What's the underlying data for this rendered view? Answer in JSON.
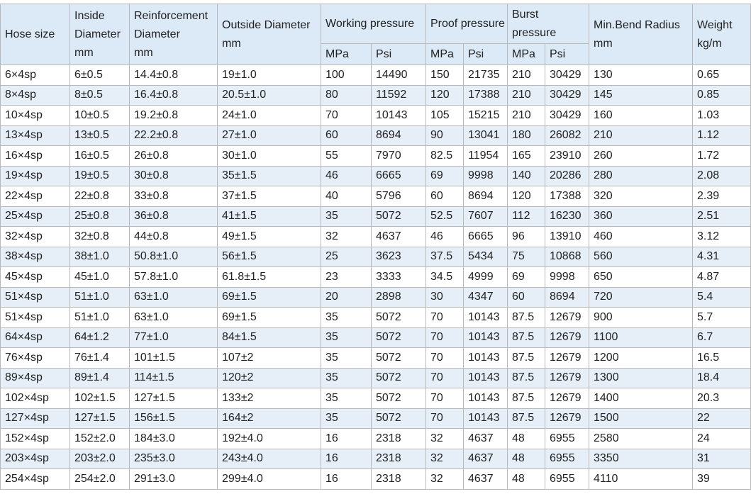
{
  "table": {
    "header": {
      "row1": [
        "Hose size",
        "Inside\nDiameter\nmm",
        "Reinforcement\nDiameter\nmm",
        "Outside Diameter\nmm",
        "Working pressure",
        "Proof pressure",
        "Burst\npressure",
        "Min.Bend Radius\nmm",
        "Weight\nkg/m"
      ],
      "row2": [
        "MPa",
        "Psi",
        "MPa",
        "Psi",
        "MPa",
        "Psi"
      ]
    },
    "rows": [
      [
        "6×4sp",
        "6±0.5",
        "14.4±0.8",
        "19±1.0",
        "100",
        "14490",
        "150",
        "21735",
        "210",
        "30429",
        "130",
        "0.65"
      ],
      [
        "8×4sp",
        "8±0.5",
        "16.4±0.8",
        "20.5±1.0",
        "80",
        "11592",
        "120",
        "17388",
        "210",
        "30429",
        "145",
        "0.85"
      ],
      [
        "10×4sp",
        "10±0.5",
        "19.2±0.8",
        "24±1.0",
        "70",
        "10143",
        "105",
        "15215",
        "210",
        "30429",
        "160",
        "1.03"
      ],
      [
        "13×4sp",
        "13±0.5",
        "22.2±0.8",
        "27±1.0",
        "60",
        "8694",
        "90",
        "13041",
        "180",
        "26082",
        "210",
        "1.12"
      ],
      [
        "16×4sp",
        "16±0.5",
        "26±0.8",
        "30±1.0",
        "55",
        "7970",
        "82.5",
        "11954",
        "165",
        "23910",
        "260",
        "1.72"
      ],
      [
        "19×4sp",
        "19±0.5",
        "30±0.8",
        "35±1.5",
        "46",
        "6665",
        "69",
        "9998",
        "140",
        "20286",
        "280",
        "2.08"
      ],
      [
        "22×4sp",
        "22±0.8",
        "33±0.8",
        "37±1.5",
        "40",
        "5796",
        "60",
        "8694",
        "120",
        "17388",
        "320",
        "2.39"
      ],
      [
        "25×4sp",
        "25±0.8",
        "36±0.8",
        "41±1.5",
        "35",
        "5072",
        "52.5",
        "7607",
        "112",
        "16230",
        "360",
        "2.51"
      ],
      [
        "32×4sp",
        "32±0.8",
        "44±0.8",
        "49±1.5",
        "32",
        "4637",
        "46",
        "6665",
        "96",
        "13910",
        "460",
        "3.12"
      ],
      [
        "38×4sp",
        "38±1.0",
        "50.8±1.0",
        "56±1.5",
        "25",
        "3623",
        "37.5",
        "5434",
        "75",
        "10868",
        "560",
        "4.31"
      ],
      [
        "45×4sp",
        "45±1.0",
        "57.8±1.0",
        "61.8±1.5",
        "23",
        "3333",
        "34.5",
        "4999",
        "69",
        "9998",
        "650",
        "4.87"
      ],
      [
        "51×4sp",
        "51±1.0",
        "63±1.0",
        "69±1.5",
        "20",
        "2898",
        "30",
        "4347",
        "60",
        "8694",
        "720",
        "5.4"
      ],
      [
        "51×4sp",
        "51±1.0",
        "63±1.0",
        "69±1.5",
        "35",
        "5072",
        "70",
        "10143",
        "87.5",
        "12679",
        "900",
        "5.7"
      ],
      [
        "64×4sp",
        "64±1.2",
        "77±1.0",
        "84±1.5",
        "35",
        "5072",
        "70",
        "10143",
        "87.5",
        "12679",
        "1100",
        "6.7"
      ],
      [
        "76×4sp",
        "76±1.4",
        "101±1.5",
        "107±2",
        "35",
        "5072",
        "70",
        "10143",
        "87.5",
        "12679",
        "1200",
        "16.5"
      ],
      [
        "89×4sp",
        "89±1.4",
        "114±1.5",
        "120±2",
        "35",
        "5072",
        "70",
        "10143",
        "87.5",
        "12679",
        "1300",
        "18.4"
      ],
      [
        "102×4sp",
        "102±1.5",
        "127±1.5",
        "133±2",
        "35",
        "5072",
        "70",
        "10143",
        "87.5",
        "12679",
        "1400",
        "20.3"
      ],
      [
        "127×4sp",
        "127±1.5",
        "156±1.5",
        "164±2",
        "35",
        "5072",
        "70",
        "10143",
        "87.5",
        "12679",
        "1500",
        "22"
      ],
      [
        "152×4sp",
        "152±2.0",
        "184±3.0",
        "192±4.0",
        "16",
        "2318",
        "32",
        "4637",
        "48",
        "6955",
        "2580",
        "24"
      ],
      [
        "203×4sp",
        "203±2.0",
        "235±3.0",
        "243±4.0",
        "16",
        "2318",
        "32",
        "4637",
        "48",
        "6955",
        "3350",
        "31"
      ],
      [
        "254×4sp",
        "254±2.0",
        "291±3.0",
        "299±4.0",
        "16",
        "2318",
        "32",
        "4637",
        "48",
        "6955",
        "4110",
        "39"
      ]
    ]
  }
}
